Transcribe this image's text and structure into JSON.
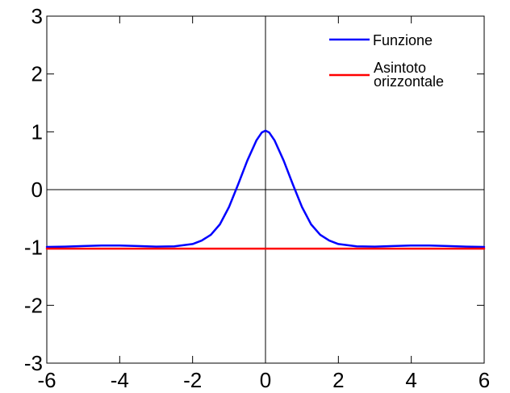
{
  "chart_data": {
    "type": "line",
    "title": "",
    "xlabel": "",
    "ylabel": "",
    "xlim": [
      -6,
      6
    ],
    "ylim": [
      -3,
      3
    ],
    "x_ticks": [
      -6,
      -4,
      -2,
      0,
      2,
      4,
      6
    ],
    "y_ticks": [
      3,
      2,
      1,
      0,
      -1,
      -2,
      -3
    ],
    "x_tick_labels": [
      "-6",
      "-4",
      "-2",
      "0",
      "2",
      "4",
      "6"
    ],
    "y_tick_labels": [
      "3",
      "2",
      "1",
      "0",
      "-1",
      "-2",
      "-3"
    ],
    "grid": false,
    "zero_axes": true,
    "legend_position": "top-right",
    "legend_entries": [
      "Funzione",
      "Asintoto",
      "orizzontale"
    ],
    "series": [
      {
        "name": "Funzione",
        "color": "#0000ff",
        "points": [
          [
            -6,
            -0.99
          ],
          [
            -5.5,
            -0.985
          ],
          [
            -5,
            -0.975
          ],
          [
            -4.5,
            -0.965
          ],
          [
            -4,
            -0.965
          ],
          [
            -3.5,
            -0.975
          ],
          [
            -3,
            -0.985
          ],
          [
            -2.5,
            -0.98
          ],
          [
            -2,
            -0.94
          ],
          [
            -1.75,
            -0.88
          ],
          [
            -1.5,
            -0.78
          ],
          [
            -1.25,
            -0.6
          ],
          [
            -1,
            -0.3
          ],
          [
            -0.75,
            0.09
          ],
          [
            -0.5,
            0.5
          ],
          [
            -0.25,
            0.85
          ],
          [
            -0.1,
            0.99
          ],
          [
            0,
            1.02
          ],
          [
            0.1,
            0.99
          ],
          [
            0.25,
            0.85
          ],
          [
            0.5,
            0.5
          ],
          [
            0.75,
            0.09
          ],
          [
            1,
            -0.3
          ],
          [
            1.25,
            -0.6
          ],
          [
            1.5,
            -0.78
          ],
          [
            1.75,
            -0.88
          ],
          [
            2,
            -0.94
          ],
          [
            2.5,
            -0.98
          ],
          [
            3,
            -0.985
          ],
          [
            3.5,
            -0.975
          ],
          [
            4,
            -0.965
          ],
          [
            4.5,
            -0.965
          ],
          [
            5,
            -0.975
          ],
          [
            5.5,
            -0.985
          ],
          [
            6,
            -0.99
          ]
        ]
      },
      {
        "name": "Asintoto orizzontale",
        "color": "#ff0000",
        "points": [
          [
            -6,
            -1.02
          ],
          [
            6,
            -1.02
          ]
        ]
      }
    ]
  }
}
